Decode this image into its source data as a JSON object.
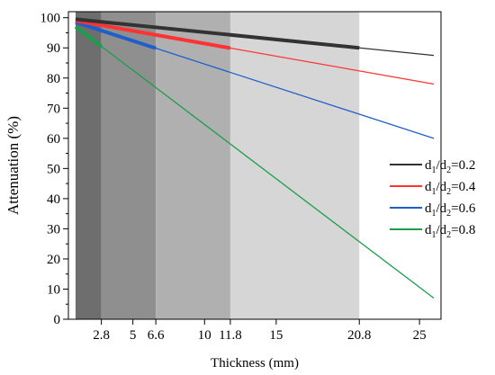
{
  "chart_data": {
    "type": "line",
    "xlabel": "Thickness (mm)",
    "ylabel": "Attenuation (%)",
    "xlim": [
      0.5,
      26.5
    ],
    "ylim": [
      0,
      102
    ],
    "x_ticks": [
      2.8,
      5,
      6.6,
      10,
      11.8,
      15,
      20.8,
      25
    ],
    "x_tick_labels": [
      "2.8",
      "5",
      "6.6",
      "10",
      "11.8",
      "15",
      "20.8",
      "25"
    ],
    "y_ticks": [
      0,
      10,
      20,
      30,
      40,
      50,
      60,
      70,
      80,
      90,
      100
    ],
    "y_tick_labels": [
      "0",
      "10",
      "20",
      "30",
      "40",
      "50",
      "60",
      "70",
      "80",
      "90",
      "100"
    ],
    "legend_position": "right",
    "shaded_regions": [
      {
        "x": [
          1,
          2.8
        ],
        "color": "#6e6e6e"
      },
      {
        "x": [
          2.8,
          6.6
        ],
        "color": "#8f8f8f"
      },
      {
        "x": [
          6.6,
          11.8
        ],
        "color": "#b0b0b0"
      },
      {
        "x": [
          11.8,
          20.8
        ],
        "color": "#d6d6d6"
      }
    ],
    "series": [
      {
        "name": "d1/d2=0.2",
        "name_parts": {
          "d": "d",
          "sub1": "1",
          "slash": "/d",
          "sub2": "2",
          "tail": "=0.2"
        },
        "color": "#333333",
        "x": [
          1,
          26
        ],
        "y": [
          99.5,
          87.5
        ],
        "bold_until": 20.8
      },
      {
        "name": "d1/d2=0.4",
        "name_parts": {
          "d": "d",
          "sub1": "1",
          "slash": "/d",
          "sub2": "2",
          "tail": "=0.4"
        },
        "color": "#ff3333",
        "x": [
          1,
          26
        ],
        "y": [
          99,
          78
        ],
        "bold_until": 11.8
      },
      {
        "name": "d1/d2=0.6",
        "name_parts": {
          "d": "d",
          "sub1": "1",
          "slash": "/d",
          "sub2": "2",
          "tail": "=0.6"
        },
        "color": "#1f5fcc",
        "x": [
          1,
          26
        ],
        "y": [
          98.5,
          60
        ],
        "bold_until": 6.6
      },
      {
        "name": "d1/d2=0.8",
        "name_parts": {
          "d": "d",
          "sub1": "1",
          "slash": "/d",
          "sub2": "2",
          "tail": "=0.8"
        },
        "color": "#1a9e4a",
        "x": [
          1,
          26
        ],
        "y": [
          97,
          7
        ],
        "bold_until": 2.8
      }
    ]
  }
}
